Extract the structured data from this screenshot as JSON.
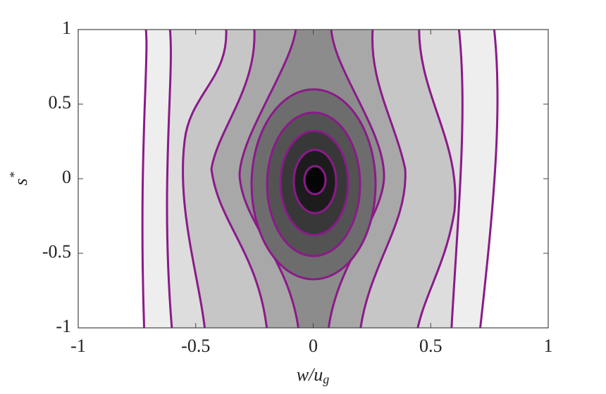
{
  "chart_data": {
    "type": "contour",
    "xlabel": "w/u",
    "xlabel_subscript": "g",
    "ylabel": "s",
    "ylabel_superscript": "*",
    "xlim": [
      -1,
      1
    ],
    "xticks": [
      -1,
      -0.5,
      0,
      0.5,
      1
    ],
    "ylim": [
      -1,
      1
    ],
    "yticks": [
      -1,
      -0.5,
      0,
      0.5,
      1
    ],
    "line_color": "#8b1a89"
  }
}
